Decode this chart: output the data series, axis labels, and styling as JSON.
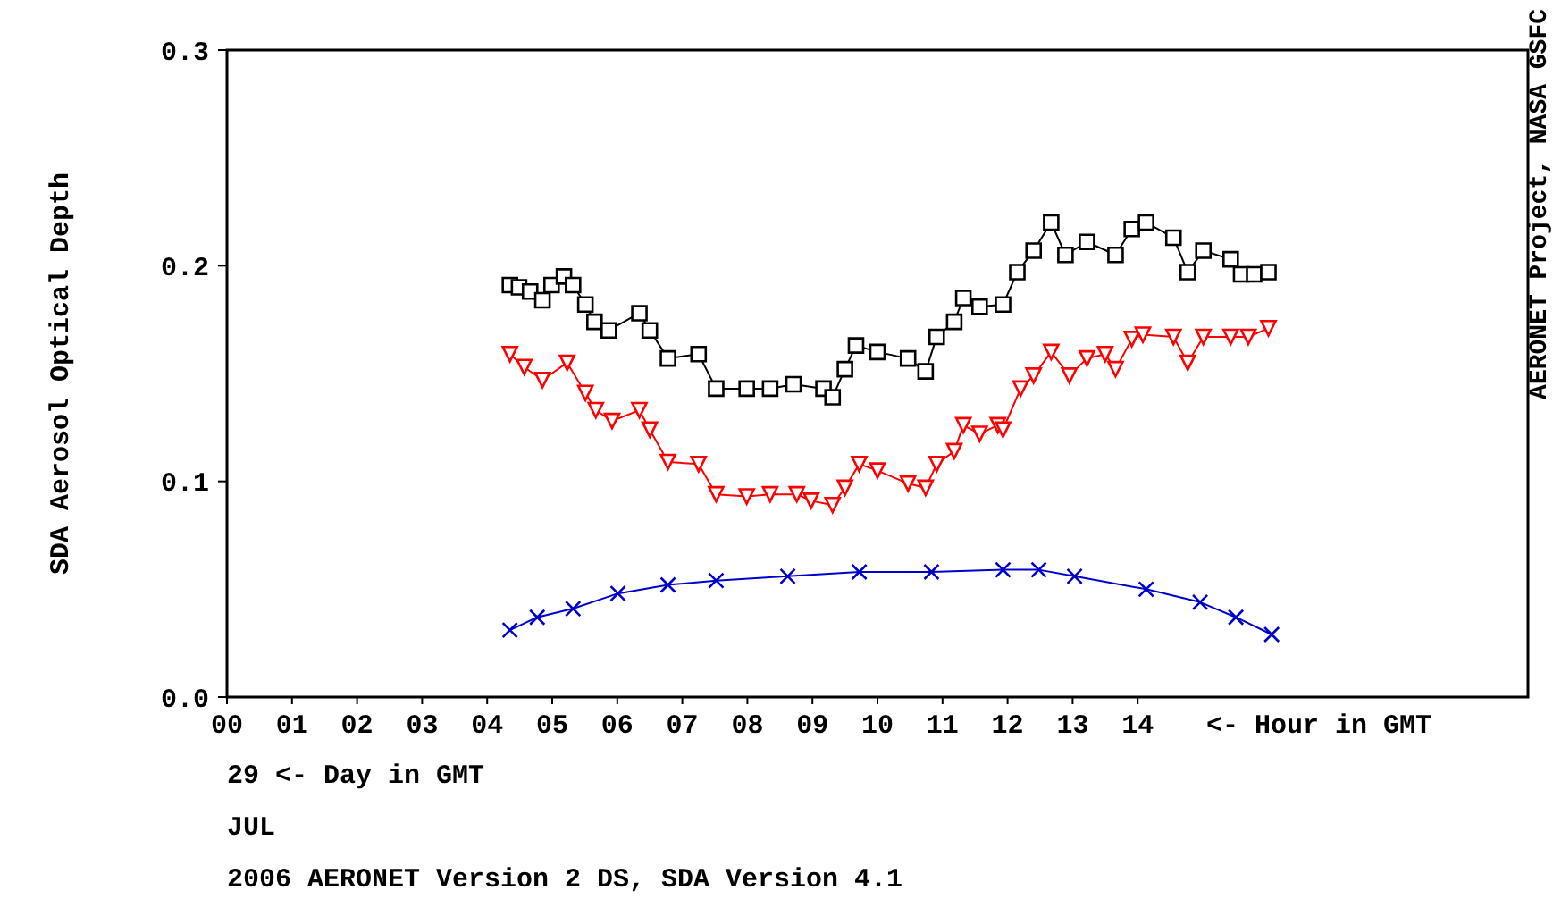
{
  "chart_data": {
    "type": "line",
    "xlabel": "<- Hour in GMT",
    "ylabel": "SDA Aerosol Optical Depth",
    "annotations": [
      "AERONET Project, NASA GSFC",
      "29  <- Day in GMT",
      "JUL",
      "2006  AERONET Version 2 DS, SDA Version 4.1"
    ],
    "xlim": [
      0,
      20
    ],
    "ylim": [
      0,
      0.3
    ],
    "xticks": [
      {
        "value": 0,
        "label": "00"
      },
      {
        "value": 1,
        "label": "01"
      },
      {
        "value": 2,
        "label": "02"
      },
      {
        "value": 3,
        "label": "03"
      },
      {
        "value": 4,
        "label": "04"
      },
      {
        "value": 5,
        "label": "05"
      },
      {
        "value": 6,
        "label": "06"
      },
      {
        "value": 7,
        "label": "07"
      },
      {
        "value": 8,
        "label": "08"
      },
      {
        "value": 9,
        "label": "09"
      },
      10,
      11,
      12,
      13,
      14
    ],
    "yticks": [
      {
        "value": 0,
        "label": "0.0"
      },
      0.1,
      0.2,
      0.3
    ],
    "grid": false,
    "line_style": "solid",
    "series": [
      {
        "color": "#000000",
        "marker": "square",
        "x": [
          4.35,
          4.49,
          4.66,
          4.85,
          4.99,
          5.18,
          5.32,
          5.51,
          5.65,
          5.87,
          6.34,
          6.5,
          6.78,
          7.25,
          7.52,
          7.99,
          8.35,
          8.71,
          9.17,
          9.31,
          9.5,
          9.67,
          10.0,
          10.47,
          10.74,
          10.91,
          11.18,
          11.32,
          11.57,
          11.93,
          12.15,
          12.4,
          12.67,
          12.89,
          13.22,
          13.66,
          13.91,
          14.13,
          14.55,
          14.77,
          15.01,
          15.43,
          15.59,
          15.79,
          16.01
        ],
        "values": [
          0.191,
          0.19,
          0.188,
          0.184,
          0.191,
          0.195,
          0.191,
          0.182,
          0.174,
          0.17,
          0.178,
          0.17,
          0.157,
          0.159,
          0.143,
          0.143,
          0.143,
          0.145,
          0.143,
          0.139,
          0.152,
          0.163,
          0.16,
          0.157,
          0.151,
          0.167,
          0.174,
          0.185,
          0.181,
          0.182,
          0.197,
          0.207,
          0.22,
          0.205,
          0.211,
          0.205,
          0.217,
          0.22,
          0.213,
          0.197,
          0.207,
          0.203,
          0.196,
          0.196,
          0.197
        ]
      },
      {
        "color": "#ff0000",
        "marker": "triangle",
        "x": [
          4.35,
          4.57,
          4.85,
          5.23,
          5.51,
          5.67,
          5.92,
          6.34,
          6.5,
          6.78,
          7.25,
          7.52,
          7.99,
          8.35,
          8.76,
          8.98,
          9.31,
          9.5,
          9.72,
          10.0,
          10.47,
          10.74,
          10.91,
          11.18,
          11.32,
          11.57,
          11.85,
          11.93,
          12.2,
          12.4,
          12.67,
          12.95,
          13.22,
          13.5,
          13.66,
          13.91,
          14.08,
          14.55,
          14.77,
          15.01,
          15.43,
          15.7,
          16.01
        ],
        "values": [
          0.159,
          0.153,
          0.147,
          0.155,
          0.141,
          0.133,
          0.128,
          0.133,
          0.124,
          0.109,
          0.108,
          0.094,
          0.093,
          0.094,
          0.094,
          0.091,
          0.089,
          0.097,
          0.108,
          0.105,
          0.099,
          0.097,
          0.108,
          0.114,
          0.126,
          0.122,
          0.126,
          0.124,
          0.143,
          0.149,
          0.16,
          0.149,
          0.157,
          0.159,
          0.152,
          0.166,
          0.168,
          0.167,
          0.155,
          0.167,
          0.167,
          0.167,
          0.171
        ]
      },
      {
        "color": "#0000cc",
        "marker": "cross",
        "x": [
          4.35,
          4.77,
          5.32,
          6.01,
          6.78,
          7.52,
          8.62,
          9.72,
          10.83,
          11.93,
          12.48,
          13.03,
          14.13,
          14.96,
          15.51,
          16.06
        ],
        "values": [
          0.031,
          0.037,
          0.041,
          0.048,
          0.052,
          0.054,
          0.056,
          0.058,
          0.058,
          0.059,
          0.059,
          0.056,
          0.05,
          0.044,
          0.037,
          0.029
        ]
      }
    ]
  }
}
